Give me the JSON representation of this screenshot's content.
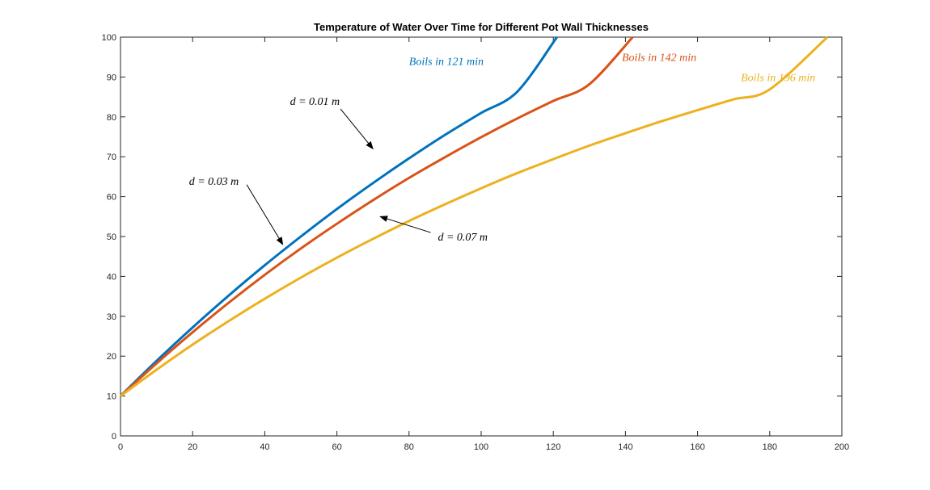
{
  "chart_data": {
    "type": "line",
    "title": "Temperature of Water Over Time for Different Pot Wall Thicknesses",
    "xlabel": "",
    "ylabel": "",
    "xlim": [
      0,
      200
    ],
    "ylim": [
      0,
      100
    ],
    "xticks": [
      0,
      20,
      40,
      60,
      80,
      100,
      120,
      140,
      160,
      180,
      200
    ],
    "yticks": [
      0,
      10,
      20,
      30,
      40,
      50,
      60,
      70,
      80,
      90,
      100
    ],
    "grid": false,
    "series": [
      {
        "color": "#0072BD",
        "x": [
          0,
          10,
          20,
          30,
          40,
          50,
          60,
          70,
          80,
          90,
          100,
          110,
          121
        ],
        "y": [
          10,
          18.8,
          27.2,
          35.2,
          42.8,
          50.0,
          56.9,
          63.4,
          69.6,
          75.5,
          81.0,
          86.3,
          100
        ]
      },
      {
        "color": "#D95319",
        "x": [
          0,
          10,
          20,
          30,
          40,
          50,
          60,
          70,
          80,
          90,
          100,
          110,
          120,
          130,
          142
        ],
        "y": [
          10,
          18.2,
          26.0,
          33.4,
          40.4,
          47.0,
          53.2,
          59.1,
          64.7,
          69.9,
          74.9,
          79.6,
          84.0,
          88.2,
          100
        ]
      },
      {
        "color": "#EDB120",
        "x": [
          0,
          10,
          20,
          30,
          40,
          50,
          60,
          70,
          80,
          90,
          100,
          110,
          120,
          130,
          140,
          150,
          160,
          170,
          180,
          196
        ],
        "y": [
          10,
          16.6,
          22.9,
          28.8,
          34.4,
          39.7,
          44.7,
          49.4,
          53.9,
          58.1,
          62.1,
          65.9,
          69.4,
          72.8,
          75.9,
          78.9,
          81.7,
          84.4,
          86.9,
          100
        ]
      }
    ],
    "annotations": [
      {
        "text": "d = 0.01 m",
        "color": "#000000",
        "arrow": true,
        "text_at": [
          47,
          84
        ],
        "arrow_from": [
          61,
          82
        ],
        "arrow_to": [
          70,
          72
        ]
      },
      {
        "text": "d = 0.03 m",
        "color": "#000000",
        "arrow": true,
        "text_at": [
          19,
          64
        ],
        "arrow_from": [
          35,
          63
        ],
        "arrow_to": [
          45,
          48
        ]
      },
      {
        "text": "d = 0.07 m",
        "color": "#000000",
        "arrow": true,
        "text_at": [
          88,
          50
        ],
        "arrow_from": [
          86,
          51
        ],
        "arrow_to": [
          72,
          55
        ]
      },
      {
        "text": "Boils in 121 min",
        "color": "#0072BD",
        "arrow": false,
        "text_at": [
          80,
          94
        ]
      },
      {
        "text": "Boils in 142 min",
        "color": "#D95319",
        "arrow": false,
        "text_at": [
          139,
          95
        ]
      },
      {
        "text": "Boils in 196 min",
        "color": "#EDB120",
        "arrow": false,
        "text_at": [
          172,
          90
        ]
      }
    ]
  }
}
